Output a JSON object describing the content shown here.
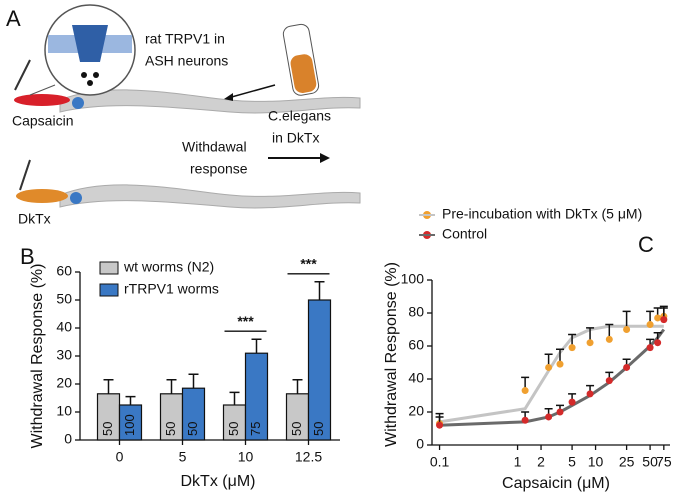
{
  "panel_a": {
    "letter": "A",
    "inset_label": [
      "rat TRPV1 in",
      "ASH neurons"
    ],
    "capsaicin": "Capsaicin",
    "tube_label": [
      "C.elegans",
      "in DkTx"
    ],
    "response": [
      "Withdawal",
      "response"
    ],
    "dktx": "DkTx"
  },
  "chart_data": [
    {
      "type": "bar",
      "panel": "B",
      "ylabel": "Withdrawal Response (%)",
      "xlabel": "DkTx (μM)",
      "categories": [
        "0",
        "5",
        "10",
        "12.5"
      ],
      "series": [
        {
          "name": "wt worms (N2)",
          "color": "#c8c8c8",
          "values": [
            16.5,
            16.5,
            12.5,
            16.5
          ],
          "errors": [
            5,
            5,
            4.5,
            5
          ],
          "n": [
            50,
            50,
            50,
            50
          ]
        },
        {
          "name": "rTRPV1 worms",
          "color": "#3a78c4",
          "values": [
            12.5,
            18.5,
            31,
            50
          ],
          "errors": [
            3,
            5,
            5,
            6.5
          ],
          "n": [
            100,
            50,
            75,
            50
          ]
        }
      ],
      "ylim": [
        0,
        60
      ],
      "yticks": [
        0,
        10,
        20,
        30,
        40,
        50,
        60
      ],
      "significance": [
        {
          "category": "10",
          "label": "***"
        },
        {
          "category": "12.5",
          "label": "***"
        }
      ],
      "legend": "upper left"
    },
    {
      "type": "scatter",
      "panel": "C",
      "ylabel": "Withdrawal Response (%)",
      "xlabel": "Capsaicin (μM)",
      "x": [
        0.1,
        1.25,
        2.5,
        3.5,
        5,
        8.5,
        15,
        25,
        50,
        62.5,
        75
      ],
      "xscale": "log",
      "xlim": [
        0.08,
        90
      ],
      "xticks": [
        0.1,
        1,
        2,
        5,
        10,
        25,
        50,
        75
      ],
      "ylim": [
        0,
        100
      ],
      "yticks": [
        0,
        20,
        40,
        60,
        80,
        100
      ],
      "series": [
        {
          "name": "Pre-incubation with DkTx (5 μM)",
          "color": "#f0a030",
          "values": [
            13,
            33,
            47,
            49,
            59,
            62,
            64,
            70,
            73,
            77,
            78
          ],
          "errors": [
            6,
            8,
            8,
            9,
            8,
            9,
            9,
            11,
            8,
            6,
            6
          ],
          "fit": {
            "color": "#c4c4c4",
            "values": [
              14,
              22,
              45,
              56,
              65,
              70,
              72,
              72,
              72,
              72,
              72
            ]
          }
        },
        {
          "name": "Control",
          "color": "#d42a2a",
          "values": [
            12,
            15,
            17,
            20,
            26,
            31,
            39,
            47,
            59,
            62,
            76
          ],
          "errors": [
            5,
            5,
            5,
            4,
            5,
            5,
            5,
            5,
            5,
            6,
            7
          ],
          "fit": {
            "color": "#6a6a6a",
            "values": [
              12,
              14,
              17,
              20,
              24,
              30,
              38,
              47,
              60,
              65,
              70
            ]
          }
        }
      ],
      "legend": "above"
    }
  ]
}
